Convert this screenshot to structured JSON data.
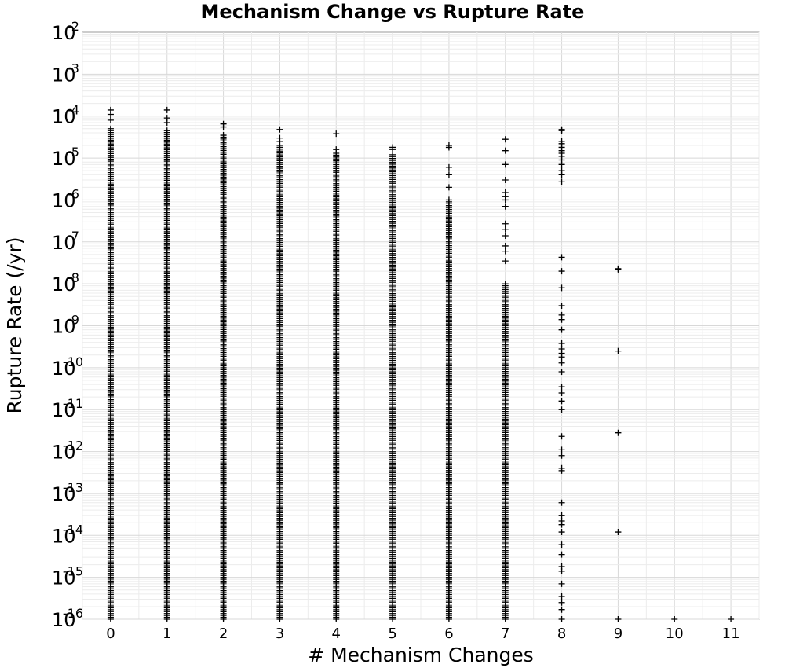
{
  "chart_data": {
    "type": "scatter",
    "title": "Mechanism Change vs Rupture Rate",
    "xlabel": "# Mechanism Changes",
    "ylabel": "Rupture Rate (/yr)",
    "marker": "+",
    "marker_color": "#000000",
    "xlim": [
      -0.5,
      11.5
    ],
    "x_ticks": [
      0,
      1,
      2,
      3,
      4,
      5,
      6,
      7,
      8,
      9,
      10,
      11
    ],
    "y_scale": "log",
    "ylim": [
      1e-16,
      0.01
    ],
    "y_tick_labels": [
      {
        "base": "10",
        "exp": "-2"
      },
      {
        "base": "10",
        "exp": "-3"
      },
      {
        "base": "10",
        "exp": "-4"
      },
      {
        "base": "10",
        "exp": "-5"
      },
      {
        "base": "10",
        "exp": "-6"
      },
      {
        "base": "10",
        "exp": "-7"
      },
      {
        "base": "10",
        "exp": "-8"
      },
      {
        "base": "10",
        "exp": "-9"
      },
      {
        "base": "10",
        "exp": "-10"
      },
      {
        "base": "10",
        "exp": "-11"
      },
      {
        "base": "10",
        "exp": "-12"
      },
      {
        "base": "10",
        "exp": "-13"
      },
      {
        "base": "10",
        "exp": "-14"
      },
      {
        "base": "10",
        "exp": "-15"
      },
      {
        "base": "10",
        "exp": "-16"
      }
    ],
    "grid": true,
    "legend": "none",
    "points_by_x": [
      {
        "x": 0,
        "max": 0.00014,
        "outliers": [
          0.00014,
          0.00011,
          8e-05
        ],
        "dense_from": 1e-16,
        "dense_to": 5e-05
      },
      {
        "x": 1,
        "max": 0.00014,
        "outliers": [
          0.00014,
          9e-05,
          7e-05
        ],
        "dense_from": 1e-16,
        "dense_to": 4.5e-05
      },
      {
        "x": 2,
        "max": 6.5e-05,
        "outliers": [
          6.5e-05,
          5.5e-05
        ],
        "dense_from": 1e-16,
        "dense_to": 3.5e-05
      },
      {
        "x": 3,
        "max": 4.8e-05,
        "outliers": [
          4.8e-05,
          3e-05,
          2.5e-05
        ],
        "dense_from": 1e-16,
        "dense_to": 2e-05
      },
      {
        "x": 4,
        "max": 3.8e-05,
        "outliers": [
          3.8e-05,
          1.6e-05
        ],
        "dense_from": 1e-16,
        "dense_to": 1.3e-05
      },
      {
        "x": 5,
        "max": 1.8e-05,
        "outliers": [
          1.8e-05,
          1.6e-05
        ],
        "dense_from": 1e-16,
        "dense_to": 1.2e-05
      },
      {
        "x": 6,
        "max": 2e-05,
        "outliers": [
          2e-05,
          1.8e-05,
          6e-06,
          4e-06,
          2e-06
        ],
        "dense_from": 1e-16,
        "dense_to": 1e-06
      },
      {
        "x": 7,
        "max": 2.8e-05,
        "outliers": [
          2.8e-05,
          1.5e-05,
          7e-06,
          3e-06,
          1.5e-06,
          1.2e-06,
          1e-06,
          7e-07,
          2.7e-07,
          2e-07,
          1.4e-07,
          8e-08,
          6e-08,
          3.5e-08
        ],
        "dense_from": 1e-16,
        "dense_to": 1e-08
      },
      {
        "x": 8,
        "max": 4.8e-05,
        "outliers": [
          4.8e-05,
          4.5e-05,
          2.5e-05,
          2.2e-05,
          1.8e-05,
          1.5e-05,
          1.3e-05,
          1.1e-05,
          9e-06,
          7e-06,
          5e-06,
          4e-06,
          2.7e-06,
          4.3e-08,
          2e-08,
          8e-09,
          3e-09,
          1.8e-09,
          1.4e-09,
          8e-10,
          3.8e-10,
          2.8e-10,
          2.2e-10,
          1.8e-10,
          1.3e-10,
          8e-11,
          3.5e-11,
          2.5e-11,
          1.6e-11,
          1e-11,
          2.3e-12,
          1.1e-12,
          8e-13,
          4e-13,
          3.5e-13,
          6e-14,
          3e-14,
          2.2e-14,
          1.8e-14,
          1.2e-14,
          6e-15,
          3.5e-15,
          1.8e-15,
          1.4e-15,
          7e-16,
          3.5e-16,
          2.5e-16,
          1.7e-16,
          1e-16
        ]
      },
      {
        "x": 9,
        "max": 2.3e-08,
        "outliers": [
          2.3e-08,
          2.2e-08,
          2.5e-10,
          2.8e-12,
          1.2e-14,
          1e-16
        ]
      },
      {
        "x": 10,
        "max": 1e-16,
        "outliers": [
          1e-16
        ]
      },
      {
        "x": 11,
        "max": 1e-16,
        "outliers": [
          1e-16
        ]
      }
    ]
  }
}
